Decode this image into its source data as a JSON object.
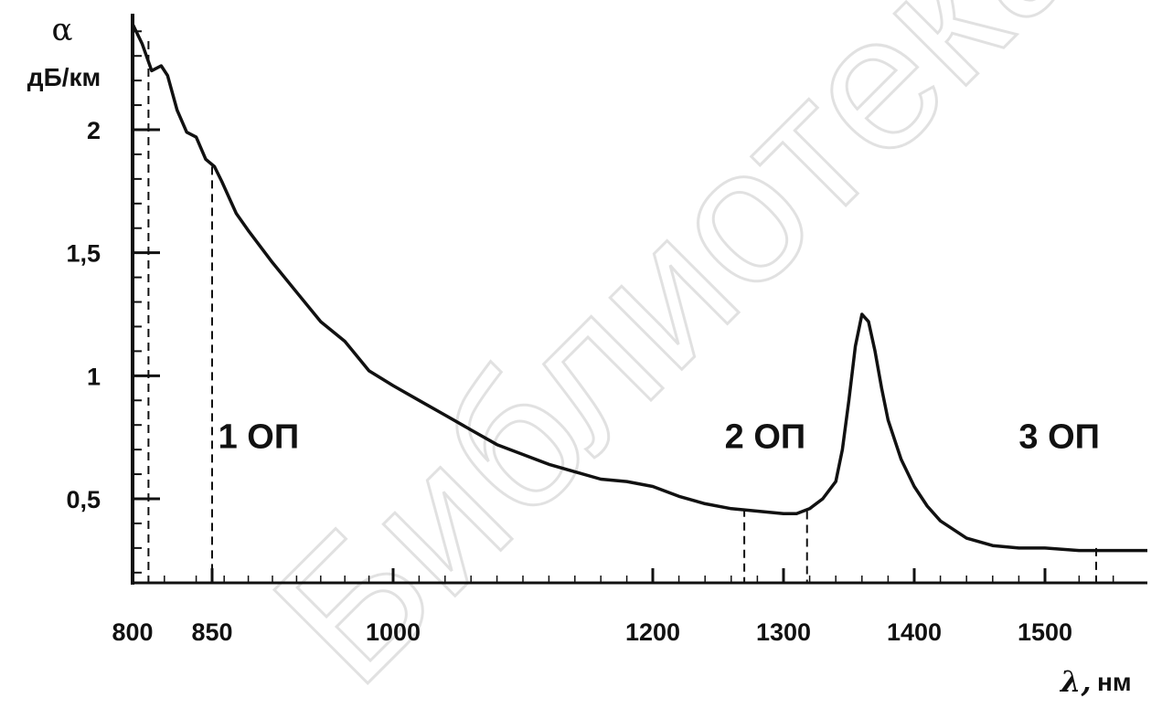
{
  "chart_data": {
    "type": "line",
    "title": "",
    "ylabel_symbol": "α",
    "ylabel_unit": "дБ/км",
    "xlabel_symbol": "λ,",
    "xlabel_unit": "нм",
    "x_ticks": [
      800,
      850,
      1000,
      1200,
      1300,
      1400,
      1500
    ],
    "x_tick_labels": [
      "800",
      "850",
      "1000",
      "1200",
      "1300",
      "1400",
      "1500"
    ],
    "y_ticks": [
      0.5,
      1,
      1.5,
      2
    ],
    "y_tick_labels": [
      "0,5",
      "1",
      "1,5",
      "2"
    ],
    "xlim": [
      800,
      1560
    ],
    "ylim": [
      0.15,
      2.5
    ],
    "series": [
      {
        "x": [
          800,
          806,
          812,
          818,
          822,
          828,
          834,
          840,
          846,
          852,
          858,
          870,
          880,
          900,
          920,
          940,
          960,
          980,
          1000,
          1020,
          1040,
          1060,
          1080,
          1100,
          1120,
          1140,
          1160,
          1180,
          1200,
          1220,
          1240,
          1260,
          1280,
          1300,
          1310,
          1320,
          1330,
          1340,
          1345,
          1350,
          1355,
          1360,
          1365,
          1370,
          1375,
          1380,
          1390,
          1400,
          1410,
          1420,
          1440,
          1460,
          1480,
          1500,
          1520,
          1540,
          1560
        ],
        "y": [
          2.43,
          2.35,
          2.24,
          2.26,
          2.22,
          2.08,
          1.99,
          1.97,
          1.88,
          1.85,
          1.79,
          1.66,
          1.59,
          1.46,
          1.34,
          1.22,
          1.14,
          1.02,
          0.96,
          0.9,
          0.84,
          0.78,
          0.72,
          0.68,
          0.64,
          0.61,
          0.58,
          0.57,
          0.55,
          0.51,
          0.48,
          0.46,
          0.45,
          0.44,
          0.44,
          0.46,
          0.5,
          0.57,
          0.7,
          0.9,
          1.12,
          1.25,
          1.22,
          1.1,
          0.95,
          0.82,
          0.66,
          0.55,
          0.47,
          0.41,
          0.34,
          0.31,
          0.3,
          0.3,
          0.29,
          0.29,
          0.29
        ]
      }
    ],
    "vertical_markers": [
      {
        "x": 810,
        "y_top": 2.36
      },
      {
        "x": 850,
        "y_top": 1.85
      },
      {
        "x": 1270,
        "y_top": 0.46
      },
      {
        "x": 1318,
        "y_top": 0.45
      },
      {
        "x": 1530,
        "y_top": 0.3
      }
    ],
    "annotations": [
      {
        "text": "1 ОП",
        "x": 855,
        "y": 0.75
      },
      {
        "text": "2 ОП",
        "x": 1255,
        "y": 0.75
      },
      {
        "text": "3 ОП",
        "x": 1480,
        "y": 0.75
      }
    ],
    "grid": false
  },
  "watermark": "Библиотека БГУИР"
}
